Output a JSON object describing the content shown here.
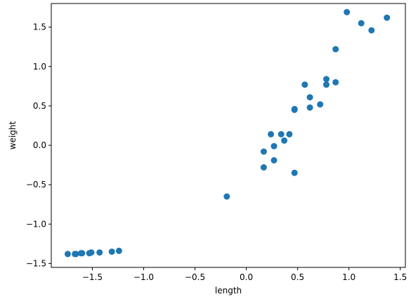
{
  "chart_data": {
    "type": "scatter",
    "xlabel": "length",
    "ylabel": "weight",
    "xlim": [
      -1.9,
      1.55
    ],
    "ylim": [
      -1.55,
      1.8
    ],
    "xticks": [
      {
        "value": -1.5,
        "label": "−1.5"
      },
      {
        "value": -1.0,
        "label": "−1.0"
      },
      {
        "value": -0.5,
        "label": "−0.5"
      },
      {
        "value": 0.0,
        "label": "0.0"
      },
      {
        "value": 0.5,
        "label": "0.5"
      },
      {
        "value": 1.0,
        "label": "1.0"
      },
      {
        "value": 1.5,
        "label": "1.5"
      }
    ],
    "yticks": [
      {
        "value": -1.5,
        "label": "−1.5"
      },
      {
        "value": -1.0,
        "label": "−1.0"
      },
      {
        "value": -0.5,
        "label": "−0.5"
      },
      {
        "value": 0.0,
        "label": "0.0"
      },
      {
        "value": 0.5,
        "label": "0.5"
      },
      {
        "value": 1.0,
        "label": "1.0"
      },
      {
        "value": 1.5,
        "label": "1.5"
      }
    ],
    "grid": false,
    "marker_color": "#1f77b4",
    "points": [
      {
        "x": -1.74,
        "y": -1.38
      },
      {
        "x": -1.67,
        "y": -1.38
      },
      {
        "x": -1.66,
        "y": -1.38
      },
      {
        "x": -1.61,
        "y": -1.37
      },
      {
        "x": -1.6,
        "y": -1.37
      },
      {
        "x": -1.53,
        "y": -1.37
      },
      {
        "x": -1.51,
        "y": -1.36
      },
      {
        "x": -1.43,
        "y": -1.36
      },
      {
        "x": -1.31,
        "y": -1.35
      },
      {
        "x": -1.24,
        "y": -1.34
      },
      {
        "x": -0.19,
        "y": -0.65
      },
      {
        "x": 0.17,
        "y": -0.08
      },
      {
        "x": 0.17,
        "y": -0.28
      },
      {
        "x": 0.24,
        "y": 0.14
      },
      {
        "x": 0.27,
        "y": -0.01
      },
      {
        "x": 0.27,
        "y": -0.19
      },
      {
        "x": 0.34,
        "y": 0.14
      },
      {
        "x": 0.37,
        "y": 0.06
      },
      {
        "x": 0.42,
        "y": 0.14
      },
      {
        "x": 0.47,
        "y": 0.45
      },
      {
        "x": 0.47,
        "y": 0.46
      },
      {
        "x": 0.47,
        "y": -0.35
      },
      {
        "x": 0.57,
        "y": 0.77
      },
      {
        "x": 0.62,
        "y": 0.61
      },
      {
        "x": 0.62,
        "y": 0.48
      },
      {
        "x": 0.72,
        "y": 0.52
      },
      {
        "x": 0.78,
        "y": 0.84
      },
      {
        "x": 0.78,
        "y": 0.77
      },
      {
        "x": 0.87,
        "y": 0.8
      },
      {
        "x": 0.87,
        "y": 1.22
      },
      {
        "x": 0.98,
        "y": 1.69
      },
      {
        "x": 1.12,
        "y": 1.55
      },
      {
        "x": 1.22,
        "y": 1.46
      },
      {
        "x": 1.37,
        "y": 1.62
      }
    ]
  }
}
